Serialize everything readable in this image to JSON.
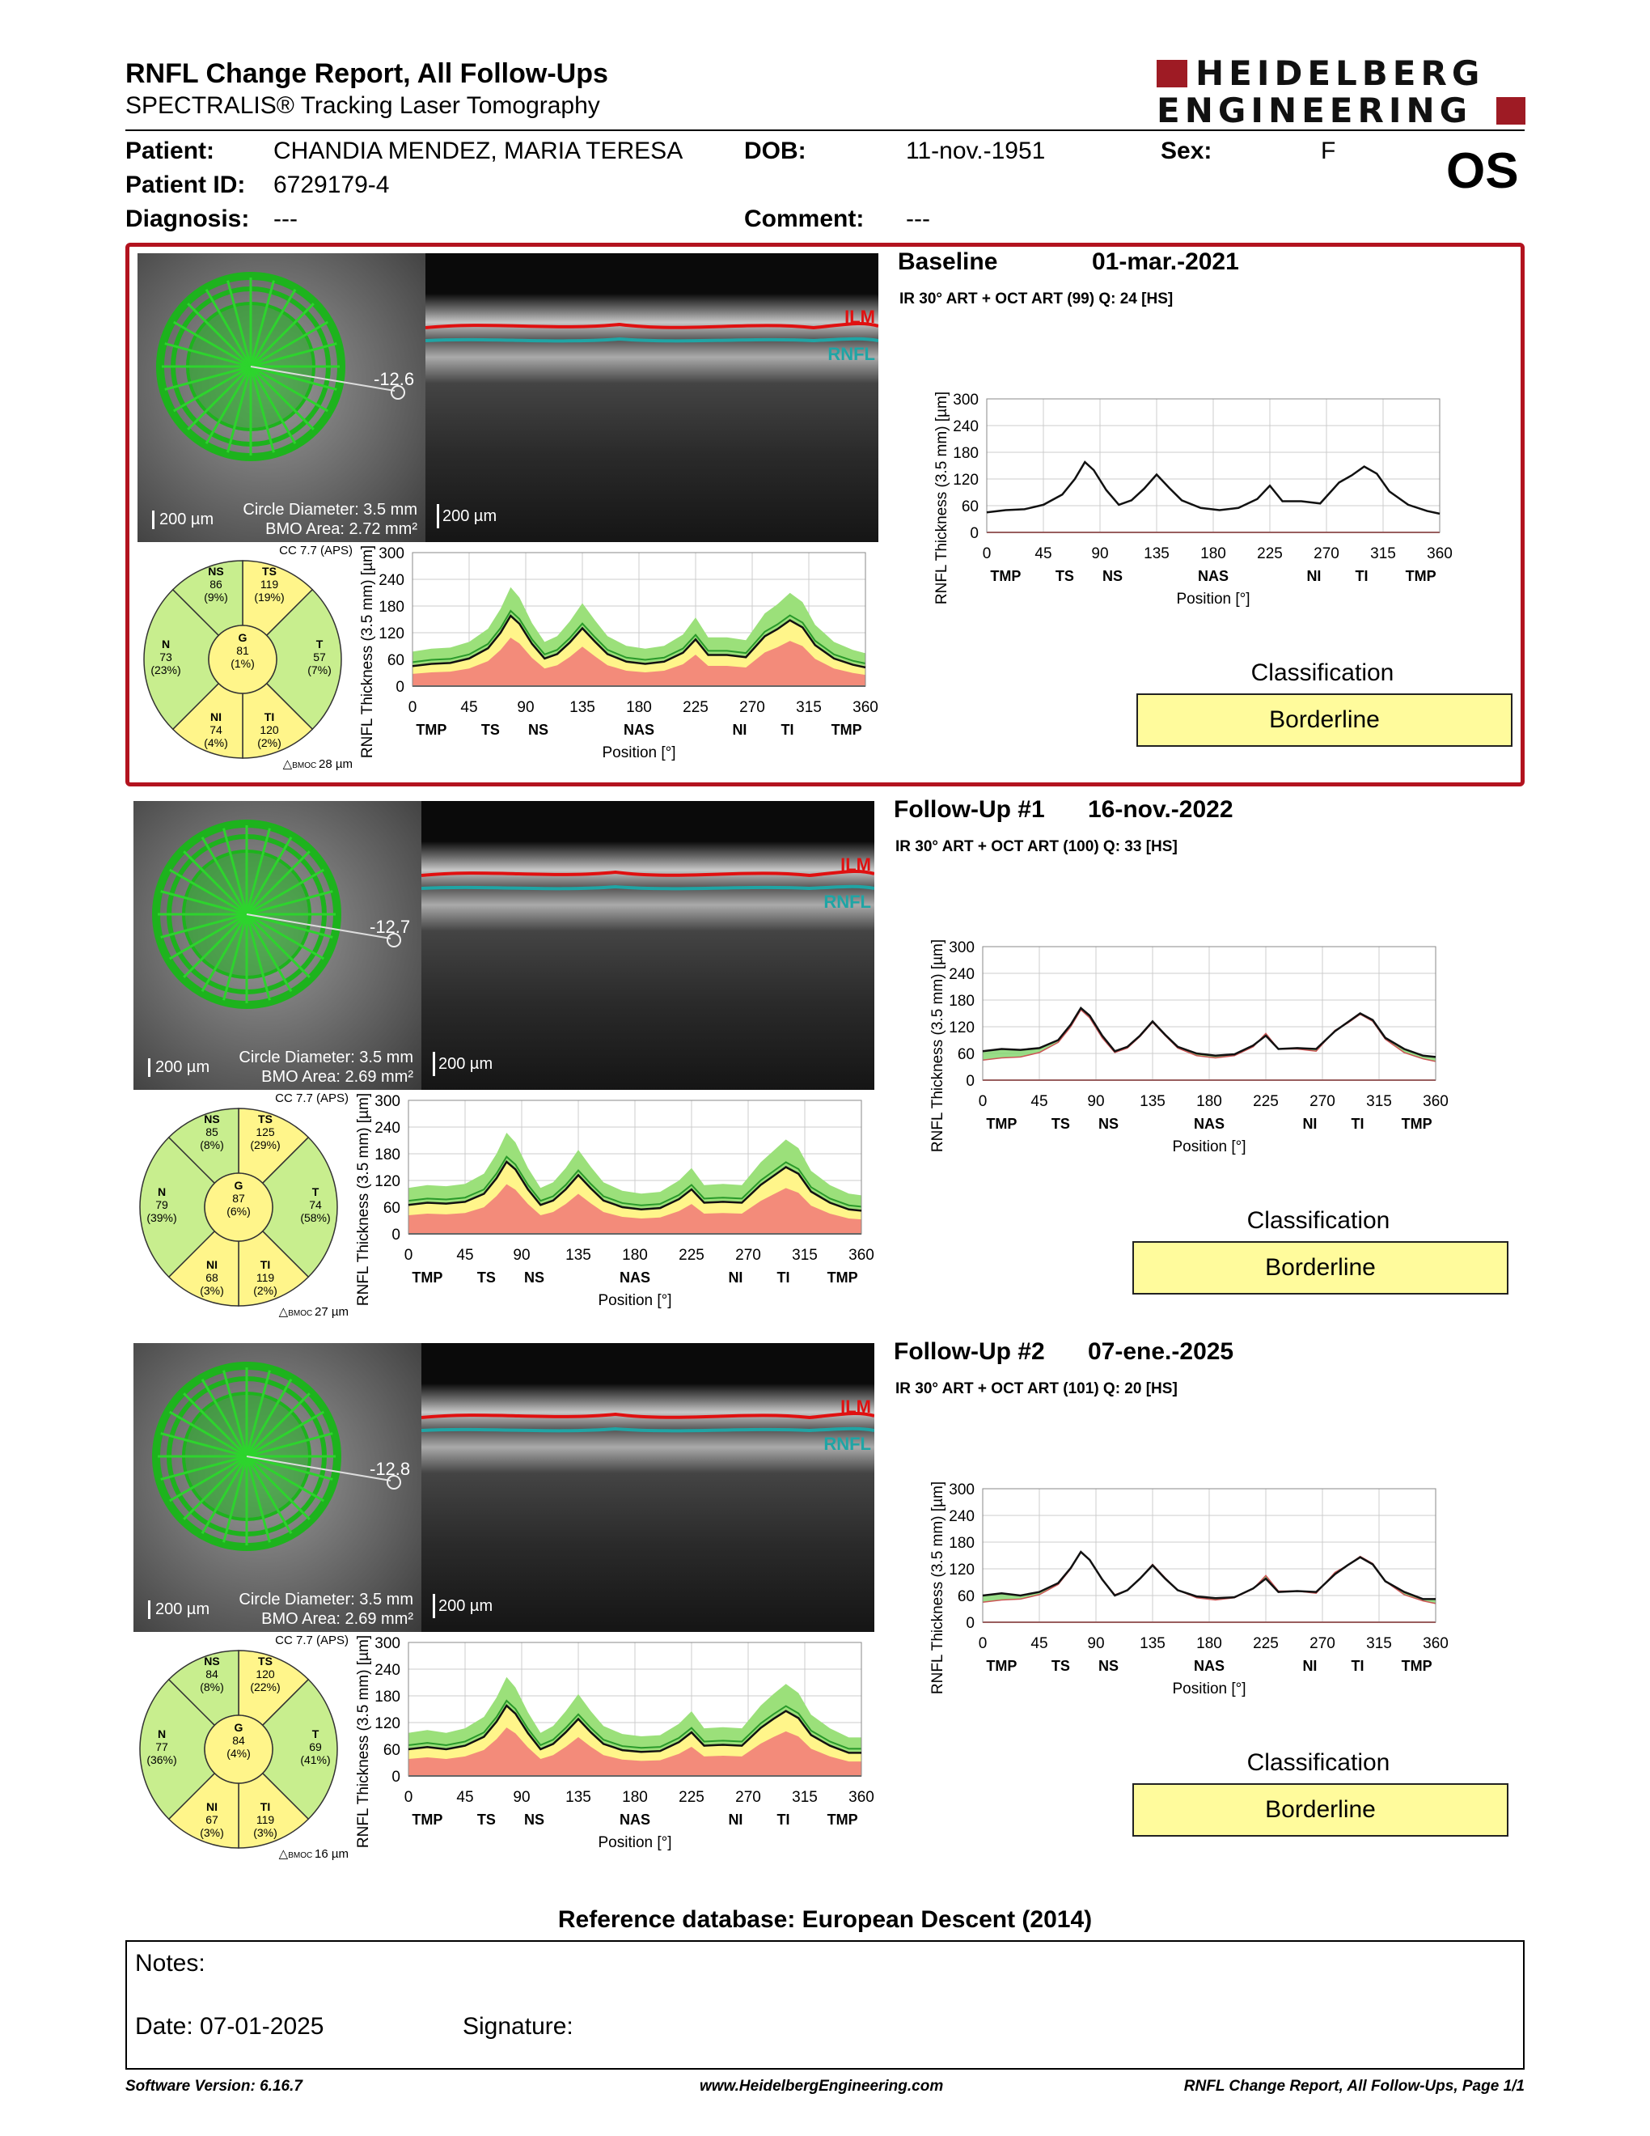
{
  "header": {
    "title": "RNFL Change Report, All Follow-Ups",
    "subtitle": "SPECTRALIS® Tracking Laser Tomography",
    "logo_line1": "HEIDELBERG",
    "logo_line2": "ENGINEERING",
    "brand_color": "#9e1b24"
  },
  "patient": {
    "patient_label": "Patient:",
    "patient_value": "CHANDIA MENDEZ, MARIA TERESA",
    "dob_label": "DOB:",
    "dob_value": "11-nov.-1951",
    "sex_label": "Sex:",
    "sex_value": "F",
    "id_label": "Patient ID:",
    "id_value": "6729179-4",
    "diagnosis_label": "Diagnosis:",
    "diagnosis_value": "---",
    "comment_label": "Comment:",
    "comment_value": "---",
    "eye": "OS"
  },
  "exams": [
    {
      "title": "Baseline",
      "date": "01-mar.-2021",
      "info": "IR 30° ART + OCT ART (99) Q: 24 [HS]",
      "fundus_angle": "-12.6",
      "scale_fundus": "200 µm",
      "circle_diameter": "Circle Diameter: 3.5 mm",
      "bmo_area": "BMO Area: 2.72 mm²",
      "scale_bscan": "200 µm",
      "ilm": "ILM",
      "rnfl": "RNFL",
      "cc": "CC 7.7 (APS)",
      "bmoc": "28 µm",
      "classification_label": "Classification",
      "classification": "Borderline",
      "sectors": {
        "NS": {
          "value": "86",
          "pct": "(9%)"
        },
        "TS": {
          "value": "119",
          "pct": "(19%)"
        },
        "N": {
          "value": "73",
          "pct": "(23%)"
        },
        "G": {
          "value": "81",
          "pct": "(1%)"
        },
        "T": {
          "value": "57",
          "pct": "(7%)"
        },
        "NI": {
          "value": "74",
          "pct": "(4%)"
        },
        "TI": {
          "value": "120",
          "pct": "(2%)"
        }
      }
    },
    {
      "title": "Follow-Up #1",
      "date": "16-nov.-2022",
      "info": "IR 30° ART + OCT ART (100) Q: 33 [HS]",
      "fundus_angle": "-12.7",
      "scale_fundus": "200 µm",
      "circle_diameter": "Circle Diameter: 3.5 mm",
      "bmo_area": "BMO Area: 2.69 mm²",
      "scale_bscan": "200 µm",
      "ilm": "ILM",
      "rnfl": "RNFL",
      "cc": "CC 7.7 (APS)",
      "bmoc": "27 µm",
      "classification_label": "Classification",
      "classification": "Borderline",
      "sectors": {
        "NS": {
          "value": "85",
          "pct": "(8%)"
        },
        "TS": {
          "value": "125",
          "pct": "(29%)"
        },
        "N": {
          "value": "79",
          "pct": "(39%)"
        },
        "G": {
          "value": "87",
          "pct": "(6%)"
        },
        "T": {
          "value": "74",
          "pct": "(58%)"
        },
        "NI": {
          "value": "68",
          "pct": "(3%)"
        },
        "TI": {
          "value": "119",
          "pct": "(2%)"
        }
      }
    },
    {
      "title": "Follow-Up #2",
      "date": "07-ene.-2025",
      "info": "IR 30° ART + OCT ART (101) Q: 20 [HS]",
      "fundus_angle": "-12.8",
      "scale_fundus": "200 µm",
      "circle_diameter": "Circle Diameter: 3.5 mm",
      "bmo_area": "BMO Area: 2.69 mm²",
      "scale_bscan": "200 µm",
      "ilm": "ILM",
      "rnfl": "RNFL",
      "cc": "CC 7.7 (APS)",
      "bmoc": "16 µm",
      "classification_label": "Classification",
      "classification": "Borderline",
      "sectors": {
        "NS": {
          "value": "84",
          "pct": "(8%)"
        },
        "TS": {
          "value": "120",
          "pct": "(22%)"
        },
        "N": {
          "value": "77",
          "pct": "(36%)"
        },
        "G": {
          "value": "84",
          "pct": "(4%)"
        },
        "T": {
          "value": "69",
          "pct": "(41%)"
        },
        "NI": {
          "value": "67",
          "pct": "(3%)"
        },
        "TI": {
          "value": "119",
          "pct": "(3%)"
        }
      }
    }
  ],
  "chart_axes": {
    "ylabel": "RNFL Thickness (3.5 mm) [µm]",
    "xlabel": "Position [°]",
    "yticks": [
      0,
      60,
      120,
      180,
      240,
      300
    ],
    "xticks": [
      0,
      45,
      90,
      135,
      180,
      225,
      270,
      315,
      360
    ],
    "sector_labels": [
      {
        "label": "TMP",
        "pos": 15
      },
      {
        "label": "TS",
        "pos": 62
      },
      {
        "label": "NS",
        "pos": 100
      },
      {
        "label": "NAS",
        "pos": 180
      },
      {
        "label": "NI",
        "pos": 260
      },
      {
        "label": "TI",
        "pos": 298
      },
      {
        "label": "TMP",
        "pos": 345
      }
    ],
    "ylim": [
      0,
      300
    ],
    "xlim": [
      0,
      360
    ]
  },
  "chart_data": [
    {
      "type": "line",
      "name_hint": "baseline normative",
      "x": [
        0,
        15,
        30,
        45,
        60,
        70,
        78,
        85,
        95,
        105,
        115,
        125,
        135,
        145,
        155,
        170,
        185,
        200,
        215,
        225,
        235,
        250,
        265,
        280,
        290,
        300,
        310,
        320,
        335,
        350,
        360
      ],
      "series": [
        {
          "name": "",
          "values": [
            45,
            50,
            52,
            62,
            85,
            120,
            158,
            140,
            95,
            62,
            72,
            98,
            130,
            100,
            72,
            55,
            50,
            55,
            75,
            105,
            70,
            70,
            65,
            112,
            128,
            148,
            132,
            92,
            62,
            48,
            42
          ]
        }
      ],
      "ylim": [
        0,
        300
      ]
    },
    {
      "type": "line",
      "x": [
        0,
        15,
        30,
        45,
        60,
        70,
        78,
        85,
        95,
        105,
        115,
        125,
        135,
        145,
        155,
        170,
        185,
        200,
        215,
        225,
        235,
        250,
        265,
        280,
        290,
        300,
        310,
        320,
        335,
        350,
        360
      ],
      "series": [
        {
          "name": "",
          "values": [
            65,
            70,
            68,
            72,
            90,
            125,
            162,
            145,
            100,
            65,
            75,
            100,
            132,
            102,
            75,
            60,
            55,
            58,
            78,
            100,
            70,
            72,
            70,
            110,
            130,
            150,
            135,
            95,
            70,
            55,
            52
          ]
        }
      ],
      "ylim": [
        0,
        300
      ]
    },
    {
      "type": "line",
      "x": [
        0,
        15,
        30,
        45,
        60,
        70,
        78,
        85,
        95,
        105,
        115,
        125,
        135,
        145,
        155,
        170,
        185,
        200,
        215,
        225,
        235,
        250,
        265,
        280,
        290,
        300,
        310,
        320,
        335,
        350,
        360
      ],
      "series": [
        {
          "name": "",
          "values": [
            60,
            65,
            60,
            68,
            88,
            122,
            158,
            140,
            96,
            60,
            72,
            98,
            128,
            98,
            72,
            58,
            54,
            56,
            76,
            98,
            68,
            70,
            68,
            108,
            128,
            146,
            130,
            92,
            68,
            52,
            52
          ]
        }
      ],
      "ylim": [
        0,
        300
      ]
    }
  ],
  "reference": "Reference database: European Descent (2014)",
  "notes": {
    "notes_label": "Notes:",
    "date_label": "Date: 07-01-2025",
    "signature_label": "Signature:"
  },
  "footer": {
    "software": "Software Version: 6.16.7",
    "website": "www.HeidelbergEngineering.com",
    "page": "RNFL Change Report, All Follow-Ups, Page 1/1"
  },
  "colors": {
    "panel_border": "#b3131f",
    "normal_green": "#9be07a",
    "borderline_yellow": "#fff58a",
    "outside_red": "#f38b7a",
    "classification_box": "#fffb9c",
    "ilm_red": "#e01010",
    "rnfl_teal": "#1fa5a5"
  }
}
